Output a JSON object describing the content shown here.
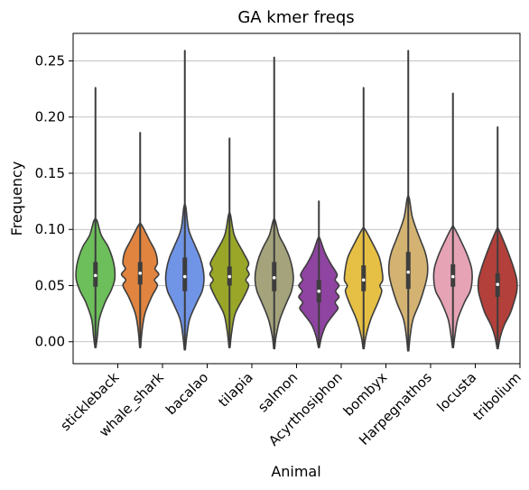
{
  "chart_data": {
    "type": "violin",
    "title": "GA kmer freqs",
    "xlabel": "Animal",
    "ylabel": "Frequency",
    "ylim": [
      -0.0195,
      0.2745
    ],
    "yticks": [
      "0.00",
      "0.05",
      "0.10",
      "0.15",
      "0.20",
      "0.25"
    ],
    "grid": "y",
    "categories": [
      "stickleback",
      "whale_shark",
      "bacalao",
      "tilapia",
      "salmon",
      "Acyrthosiphon",
      "bombyx",
      "Harpegnathos",
      "locusta",
      "tribolium"
    ],
    "series": [
      {
        "category": "stickleback",
        "color": "#6dbf5b",
        "min": -0.005,
        "max": 0.226,
        "q1": 0.049,
        "median": 0.059,
        "q3": 0.071,
        "width": 0.04,
        "tail": 0.108,
        "profile": [
          [
            -0.005,
            0.001
          ],
          [
            0.005,
            0.004
          ],
          [
            0.02,
            0.008
          ],
          [
            0.035,
            0.02
          ],
          [
            0.045,
            0.032
          ],
          [
            0.055,
            0.04
          ],
          [
            0.065,
            0.04
          ],
          [
            0.075,
            0.035
          ],
          [
            0.085,
            0.026
          ],
          [
            0.095,
            0.012
          ],
          [
            0.108,
            0.003
          ]
        ]
      },
      {
        "category": "whale_shark",
        "color": "#e08440",
        "min": -0.005,
        "max": 0.186,
        "q1": 0.051,
        "median": 0.061,
        "q3": 0.071,
        "width": 0.039,
        "tail": 0.104,
        "profile": [
          [
            -0.005,
            0.001
          ],
          [
            0.01,
            0.004
          ],
          [
            0.025,
            0.01
          ],
          [
            0.04,
            0.024
          ],
          [
            0.05,
            0.036
          ],
          [
            0.055,
            0.03
          ],
          [
            0.06,
            0.039
          ],
          [
            0.065,
            0.031
          ],
          [
            0.07,
            0.036
          ],
          [
            0.08,
            0.032
          ],
          [
            0.09,
            0.02
          ],
          [
            0.104,
            0.003
          ]
        ]
      },
      {
        "category": "bacalao",
        "color": "#7094e6",
        "min": -0.007,
        "max": 0.259,
        "q1": 0.045,
        "median": 0.058,
        "q3": 0.075,
        "width": 0.04,
        "tail": 0.12,
        "profile": [
          [
            -0.007,
            0.001
          ],
          [
            0.005,
            0.004
          ],
          [
            0.02,
            0.01
          ],
          [
            0.035,
            0.025
          ],
          [
            0.045,
            0.036
          ],
          [
            0.055,
            0.04
          ],
          [
            0.065,
            0.038
          ],
          [
            0.075,
            0.032
          ],
          [
            0.085,
            0.022
          ],
          [
            0.1,
            0.008
          ],
          [
            0.12,
            0.002
          ]
        ]
      },
      {
        "category": "tilapia",
        "color": "#99a627",
        "min": -0.005,
        "max": 0.181,
        "q1": 0.05,
        "median": 0.058,
        "q3": 0.067,
        "width": 0.041,
        "tail": 0.113,
        "profile": [
          [
            -0.005,
            0.001
          ],
          [
            0.01,
            0.005
          ],
          [
            0.025,
            0.012
          ],
          [
            0.04,
            0.03
          ],
          [
            0.05,
            0.04
          ],
          [
            0.055,
            0.034
          ],
          [
            0.06,
            0.041
          ],
          [
            0.065,
            0.036
          ],
          [
            0.07,
            0.04
          ],
          [
            0.08,
            0.028
          ],
          [
            0.095,
            0.01
          ],
          [
            0.113,
            0.002
          ]
        ]
      },
      {
        "category": "salmon",
        "color": "#a5a37c",
        "min": -0.006,
        "max": 0.253,
        "q1": 0.045,
        "median": 0.057,
        "q3": 0.071,
        "width": 0.04,
        "tail": 0.108,
        "profile": [
          [
            -0.006,
            0.001
          ],
          [
            0.005,
            0.004
          ],
          [
            0.02,
            0.012
          ],
          [
            0.035,
            0.026
          ],
          [
            0.045,
            0.036
          ],
          [
            0.055,
            0.04
          ],
          [
            0.065,
            0.038
          ],
          [
            0.075,
            0.032
          ],
          [
            0.085,
            0.022
          ],
          [
            0.095,
            0.01
          ],
          [
            0.108,
            0.002
          ]
        ]
      },
      {
        "category": "Acyrthosiphon",
        "color": "#8e44a0",
        "min": -0.005,
        "max": 0.125,
        "q1": 0.035,
        "median": 0.045,
        "q3": 0.055,
        "width": 0.042,
        "tail": 0.092,
        "profile": [
          [
            -0.005,
            0.001
          ],
          [
            0.005,
            0.006
          ],
          [
            0.015,
            0.015
          ],
          [
            0.025,
            0.032
          ],
          [
            0.03,
            0.04
          ],
          [
            0.035,
            0.034
          ],
          [
            0.04,
            0.042
          ],
          [
            0.045,
            0.035
          ],
          [
            0.05,
            0.042
          ],
          [
            0.055,
            0.034
          ],
          [
            0.06,
            0.038
          ],
          [
            0.07,
            0.024
          ],
          [
            0.08,
            0.012
          ],
          [
            0.092,
            0.002
          ]
        ]
      },
      {
        "category": "bombyx",
        "color": "#e6c044",
        "min": -0.006,
        "max": 0.226,
        "q1": 0.045,
        "median": 0.055,
        "q3": 0.068,
        "width": 0.04,
        "tail": 0.1,
        "profile": [
          [
            -0.006,
            0.001
          ],
          [
            0.005,
            0.005
          ],
          [
            0.02,
            0.015
          ],
          [
            0.035,
            0.03
          ],
          [
            0.045,
            0.038
          ],
          [
            0.05,
            0.034
          ],
          [
            0.055,
            0.04
          ],
          [
            0.065,
            0.038
          ],
          [
            0.075,
            0.033
          ],
          [
            0.085,
            0.022
          ],
          [
            0.1,
            0.003
          ]
        ]
      },
      {
        "category": "Harpegnathos",
        "color": "#d4b372",
        "min": -0.008,
        "max": 0.259,
        "q1": 0.047,
        "median": 0.062,
        "q3": 0.08,
        "width": 0.04,
        "tail": 0.128,
        "profile": [
          [
            -0.008,
            0.001
          ],
          [
            0.005,
            0.004
          ],
          [
            0.02,
            0.01
          ],
          [
            0.035,
            0.024
          ],
          [
            0.05,
            0.035
          ],
          [
            0.06,
            0.04
          ],
          [
            0.07,
            0.04
          ],
          [
            0.08,
            0.035
          ],
          [
            0.09,
            0.026
          ],
          [
            0.1,
            0.017
          ],
          [
            0.112,
            0.008
          ],
          [
            0.128,
            0.002
          ]
        ]
      },
      {
        "category": "locusta",
        "color": "#e6a3b5",
        "min": -0.005,
        "max": 0.221,
        "q1": 0.049,
        "median": 0.058,
        "q3": 0.069,
        "width": 0.04,
        "tail": 0.102,
        "profile": [
          [
            -0.005,
            0.001
          ],
          [
            0.005,
            0.004
          ],
          [
            0.02,
            0.01
          ],
          [
            0.035,
            0.024
          ],
          [
            0.045,
            0.036
          ],
          [
            0.055,
            0.04
          ],
          [
            0.065,
            0.039
          ],
          [
            0.075,
            0.032
          ],
          [
            0.085,
            0.022
          ],
          [
            0.102,
            0.002
          ]
        ]
      },
      {
        "category": "tribolium",
        "color": "#b3403a",
        "min": -0.006,
        "max": 0.191,
        "q1": 0.04,
        "median": 0.051,
        "q3": 0.061,
        "width": 0.04,
        "tail": 0.1,
        "profile": [
          [
            -0.006,
            0.001
          ],
          [
            0.005,
            0.006
          ],
          [
            0.015,
            0.014
          ],
          [
            0.025,
            0.026
          ],
          [
            0.035,
            0.034
          ],
          [
            0.045,
            0.04
          ],
          [
            0.055,
            0.04
          ],
          [
            0.065,
            0.034
          ],
          [
            0.075,
            0.026
          ],
          [
            0.085,
            0.017
          ],
          [
            0.1,
            0.002
          ]
        ]
      }
    ]
  }
}
